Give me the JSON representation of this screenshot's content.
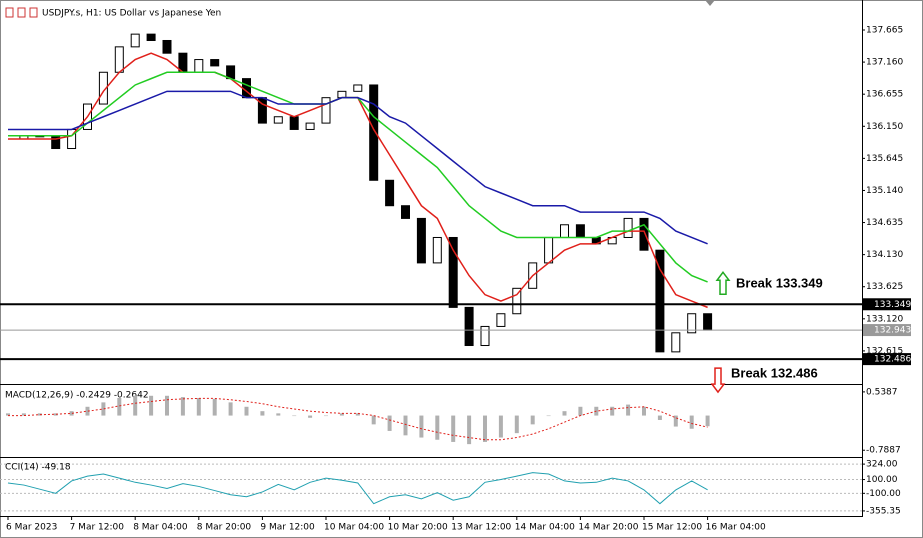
{
  "header": {
    "symbol_text": "USDJPY.s, H1:  US Dollar vs Japanese Yen"
  },
  "chart_data": [
    {
      "type": "candlestick",
      "values": [
        135.95,
        136.0,
        136.0,
        135.8,
        136.1,
        136.5,
        137.0,
        137.4,
        137.6,
        137.5,
        137.3,
        137.0,
        137.2,
        137.1,
        136.9,
        136.6,
        136.2,
        136.3,
        136.1,
        136.2,
        136.6,
        136.7,
        136.8,
        135.3,
        134.9,
        134.7,
        134.0,
        134.4,
        133.3,
        132.7,
        133.0,
        133.2,
        133.6,
        134.0,
        134.4,
        134.6,
        134.4,
        134.3,
        134.4,
        134.7,
        134.2,
        132.6,
        132.9,
        133.2,
        132.943
      ],
      "up_color": "#ffffff",
      "down_color": "#000000",
      "overlays": [
        {
          "color": "#e0201a",
          "values": [
            135.95,
            135.95,
            135.95,
            135.95,
            136.0,
            136.3,
            136.7,
            137.0,
            137.2,
            137.3,
            137.2,
            137.0,
            137.0,
            137.0,
            136.9,
            136.7,
            136.5,
            136.4,
            136.3,
            136.4,
            136.5,
            136.6,
            136.6,
            136.1,
            135.7,
            135.3,
            134.9,
            134.7,
            134.2,
            133.8,
            133.5,
            133.4,
            133.5,
            133.8,
            134.0,
            134.2,
            134.3,
            134.3,
            134.4,
            134.5,
            134.5,
            133.9,
            133.5,
            133.4,
            133.3
          ]
        },
        {
          "color": "#22cc22",
          "values": [
            136.0,
            136.0,
            136.0,
            136.0,
            136.0,
            136.2,
            136.4,
            136.6,
            136.8,
            136.9,
            137.0,
            137.0,
            137.0,
            137.0,
            136.9,
            136.8,
            136.7,
            136.6,
            136.5,
            136.5,
            136.5,
            136.6,
            136.6,
            136.3,
            136.1,
            135.9,
            135.7,
            135.5,
            135.2,
            134.9,
            134.7,
            134.5,
            134.4,
            134.4,
            134.4,
            134.4,
            134.4,
            134.4,
            134.5,
            134.5,
            134.6,
            134.3,
            134.0,
            133.8,
            133.7
          ]
        },
        {
          "color": "#1a1aa8",
          "values": [
            136.1,
            136.1,
            136.1,
            136.1,
            136.1,
            136.2,
            136.3,
            136.4,
            136.5,
            136.6,
            136.7,
            136.7,
            136.7,
            136.7,
            136.7,
            136.6,
            136.6,
            136.5,
            136.5,
            136.5,
            136.5,
            136.6,
            136.6,
            136.5,
            136.3,
            136.2,
            136.0,
            135.8,
            135.6,
            135.4,
            135.2,
            135.1,
            135.0,
            134.9,
            134.9,
            134.9,
            134.8,
            134.8,
            134.8,
            134.8,
            134.8,
            134.7,
            134.5,
            134.4,
            134.3
          ]
        }
      ],
      "ylim": [
        132.11,
        138.09
      ],
      "yticks": [
        137.665,
        {
          "value": 137.16,
          "label": "137.160"
        },
        136.655,
        {
          "value": 136.15,
          "label": "136.150"
        },
        135.645,
        {
          "value": 135.14,
          "label": "135.140"
        },
        134.635,
        {
          "value": 134.13,
          "label": "134.130"
        },
        133.625,
        {
          "value": 133.12,
          "label": "133.120"
        },
        132.615
      ],
      "levels": [
        {
          "value": 133.349,
          "text": "Break 133.349",
          "arrow_color": "#22aa22",
          "direction": "up"
        },
        {
          "value": 132.486,
          "text": "Break 132.486",
          "arrow_color": "#e0201a",
          "direction": "down"
        }
      ],
      "last_price": 132.943
    },
    {
      "type": "macd",
      "title": "MACD(12,26,9) -0.2429 -0.2642",
      "color": "#b0b0b0",
      "values": [
        0.05,
        0.05,
        0.05,
        0.05,
        0.1,
        0.2,
        0.3,
        0.4,
        0.45,
        0.45,
        0.45,
        0.42,
        0.4,
        0.38,
        0.3,
        0.2,
        0.1,
        0.05,
        0.0,
        -0.05,
        0.0,
        0.05,
        0.05,
        -0.2,
        -0.35,
        -0.45,
        -0.5,
        -0.55,
        -0.6,
        -0.65,
        -0.6,
        -0.5,
        -0.4,
        -0.2,
        0.0,
        0.1,
        0.2,
        0.2,
        0.2,
        0.25,
        0.2,
        -0.1,
        -0.25,
        -0.3,
        -0.2429
      ],
      "signal": {
        "color": "#e0201a",
        "values": [
          0.0,
          0.0,
          0.02,
          0.03,
          0.05,
          0.1,
          0.15,
          0.22,
          0.28,
          0.32,
          0.36,
          0.38,
          0.39,
          0.39,
          0.36,
          0.32,
          0.27,
          0.2,
          0.15,
          0.1,
          0.07,
          0.05,
          0.05,
          0.0,
          -0.1,
          -0.2,
          -0.3,
          -0.38,
          -0.45,
          -0.5,
          -0.55,
          -0.55,
          -0.5,
          -0.42,
          -0.3,
          -0.15,
          0.0,
          0.1,
          0.15,
          0.18,
          0.2,
          0.1,
          -0.05,
          -0.18,
          -0.2642
        ]
      },
      "ylim": [
        -0.92,
        0.65
      ],
      "yticks": [
        0.5387,
        -0.7887
      ]
    },
    {
      "type": "line",
      "title": "CCI(14) -49.18",
      "color": "#20a0b0",
      "categories": [
        "6 Mar 2023",
        null,
        null,
        null,
        "7 Mar 12:00",
        null,
        null,
        null,
        "8 Mar 04:00",
        null,
        null,
        null,
        "8 Mar 20:00",
        null,
        null,
        null,
        "9 Mar 12:00",
        null,
        null,
        null,
        "10 Mar 04:00",
        null,
        null,
        null,
        "10 Mar 20:00",
        null,
        null,
        null,
        "13 Mar 12:00",
        null,
        null,
        null,
        "14 Mar 04:00",
        null,
        null,
        null,
        "14 Mar 20:00",
        null,
        null,
        null,
        "15 Mar 12:00",
        null,
        null,
        null,
        "16 Mar 04:00"
      ],
      "values": [
        50,
        20,
        -40,
        -100,
        80,
        150,
        180,
        120,
        60,
        20,
        -30,
        40,
        0,
        -60,
        -120,
        -150,
        -80,
        30,
        -50,
        60,
        120,
        90,
        50,
        -250,
        -150,
        -120,
        -180,
        -90,
        -200,
        -150,
        60,
        100,
        150,
        200,
        180,
        80,
        50,
        60,
        120,
        80,
        -50,
        -250,
        -50,
        80,
        -49.18
      ],
      "ylim": [
        -429,
        412.6
      ],
      "yticks": [
        {
          "value": 324,
          "label": "324.00"
        },
        {
          "value": 100,
          "label": "100.00"
        },
        {
          "value": -100,
          "label": "-100.00"
        },
        -355.35
      ]
    }
  ]
}
